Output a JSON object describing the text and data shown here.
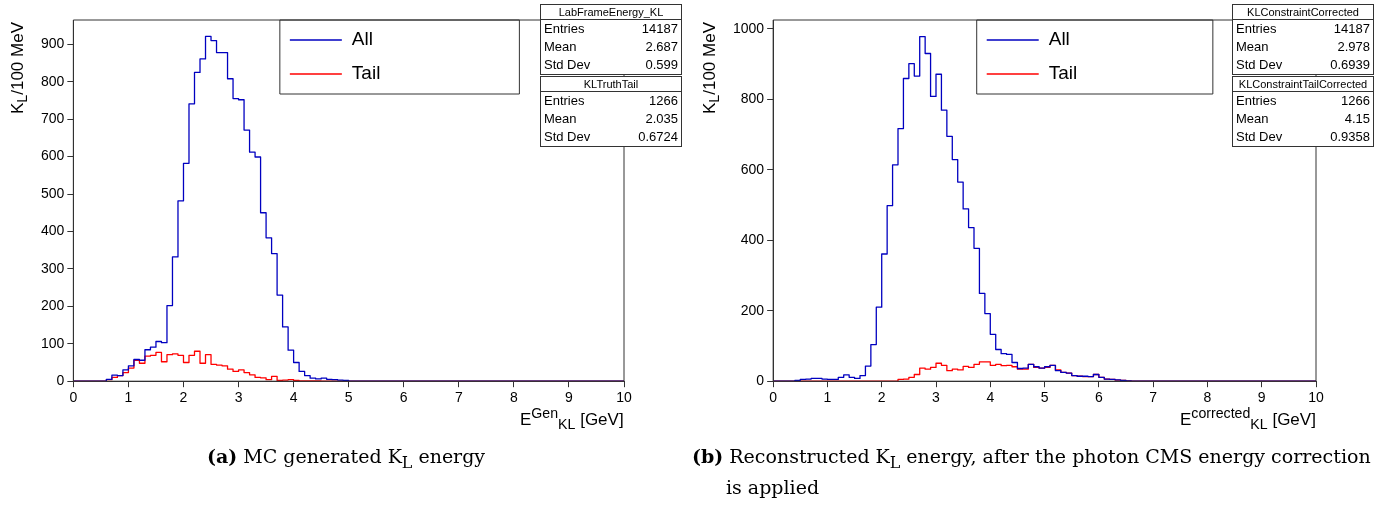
{
  "chart_data": [
    {
      "type": "histogram",
      "xlabel": "E$^{Gen}$$_{KL}$ [GeV]",
      "ylabel": "K$_{L}$/100 MeV",
      "bins": [
        0,
        0.1,
        0.2,
        0.3,
        0.4,
        0.5,
        0.6,
        0.7,
        0.8,
        0.9,
        1,
        1.1,
        1.2,
        1.3,
        1.4,
        1.5,
        1.6,
        1.7,
        1.8,
        1.9,
        2,
        2.1,
        2.2,
        2.3,
        2.4,
        2.5,
        2.6,
        2.7,
        2.8,
        2.9,
        3,
        3.1,
        3.2,
        3.3,
        3.4,
        3.5,
        3.6,
        3.7,
        3.8,
        3.9,
        4,
        4.1,
        4.2,
        4.3,
        4.4,
        4.5,
        4.6,
        4.7,
        4.8,
        4.9,
        5,
        5.1,
        5.2,
        5.3,
        5.4,
        5.5,
        5.6,
        5.7,
        5.8,
        5.9,
        6,
        6.1,
        6.2,
        6.3,
        6.4,
        6.5,
        6.6,
        6.7,
        6.8,
        6.9,
        7,
        7.1,
        7.2,
        7.3,
        7.4,
        7.5,
        7.6,
        7.7,
        7.8,
        7.9,
        8,
        8.1,
        8.2,
        8.3,
        8.4,
        8.5,
        8.6,
        8.7,
        8.8,
        8.9,
        9,
        9.1,
        9.2,
        9.3,
        9.4,
        9.5,
        9.6,
        9.7,
        9.8,
        9.9,
        10
      ],
      "series": [
        {
          "name": "All",
          "color": "#0000c0",
          "values": [
            0,
            0,
            0,
            0,
            0,
            0,
            5,
            16,
            15,
            30,
            41,
            58,
            56,
            84,
            91,
            106,
            103,
            202,
            332,
            482,
            582,
            741,
            825,
            861,
            921,
            910,
            878,
            878,
            808,
            755,
            752,
            671,
            612,
            599,
            450,
            383,
            341,
            230,
            145,
            83,
            50,
            26,
            15,
            8,
            6,
            8,
            5,
            4,
            3,
            2,
            0,
            0,
            0,
            0,
            0,
            0,
            0,
            0,
            0,
            0,
            0,
            0,
            0,
            0,
            0,
            0,
            0,
            0,
            0,
            0,
            0,
            0,
            0,
            0,
            0,
            0,
            0,
            0,
            0,
            0,
            0,
            0,
            0,
            0,
            0,
            0,
            0,
            0,
            0,
            0,
            0,
            0,
            0,
            0,
            0,
            0,
            0,
            0,
            0,
            0
          ]
        },
        {
          "name": "Tail",
          "color": "#ff0000",
          "values": [
            0,
            0,
            0,
            0,
            0,
            0,
            4,
            10,
            15,
            23,
            35,
            56,
            48,
            67,
            69,
            77,
            52,
            71,
            73,
            69,
            50,
            69,
            80,
            48,
            71,
            45,
            43,
            41,
            32,
            26,
            30,
            23,
            17,
            10,
            9,
            4,
            13,
            2,
            3,
            4,
            2,
            1,
            1,
            1,
            1,
            0,
            0,
            0,
            0,
            0,
            0,
            0,
            0,
            0,
            0,
            0,
            0,
            0,
            0,
            0,
            0,
            0,
            0,
            0,
            0,
            0,
            0,
            0,
            0,
            0,
            0,
            0,
            0,
            0,
            0,
            0,
            0,
            0,
            0,
            0,
            0,
            0,
            0,
            0,
            0,
            0,
            0,
            0,
            0,
            0,
            0,
            0,
            0,
            0,
            0,
            0,
            0,
            0,
            0,
            0
          ]
        }
      ],
      "xlim": [
        0,
        10
      ],
      "xticks": [
        0,
        1,
        2,
        3,
        4,
        5,
        6,
        7,
        8,
        9,
        10
      ],
      "ylim": [
        0,
        965
      ],
      "yticks": [
        0,
        100,
        200,
        300,
        400,
        500,
        600,
        700,
        800,
        900
      ],
      "legend": "top",
      "marker": "none",
      "annotations": [
        "LabFrameEnergy_KL",
        "Entries",
        "14187",
        "Mean",
        "2.687",
        "Std Dev",
        "0.599",
        "KLTruthTail",
        "Entries",
        "1266",
        "Mean",
        "2.035",
        "Std Dev",
        "0.6724",
        "(a) MC generated K$_{L}$ energy"
      ]
    },
    {
      "type": "histogram",
      "xlabel": "E$^{corrected}$$_{KL}$ [GeV]",
      "ylabel": "K$_{L}$/100 MeV",
      "bins": [
        0,
        0.1,
        0.2,
        0.3,
        0.4,
        0.5,
        0.6,
        0.7,
        0.8,
        0.9,
        1,
        1.1,
        1.2,
        1.3,
        1.4,
        1.5,
        1.6,
        1.7,
        1.8,
        1.9,
        2,
        2.1,
        2.2,
        2.3,
        2.4,
        2.5,
        2.6,
        2.7,
        2.8,
        2.9,
        3,
        3.1,
        3.2,
        3.3,
        3.4,
        3.5,
        3.6,
        3.7,
        3.8,
        3.9,
        4,
        4.1,
        4.2,
        4.3,
        4.4,
        4.5,
        4.6,
        4.7,
        4.8,
        4.9,
        5,
        5.1,
        5.2,
        5.3,
        5.4,
        5.5,
        5.6,
        5.7,
        5.8,
        5.9,
        6,
        6.1,
        6.2,
        6.3,
        6.4,
        6.5,
        6.6,
        6.7,
        6.8,
        6.9,
        7,
        7.1,
        7.2,
        7.3,
        7.4,
        7.5,
        7.6,
        7.7,
        7.8,
        7.9,
        8,
        8.1,
        8.2,
        8.3,
        8.4,
        8.5,
        8.6,
        8.7,
        8.8,
        8.9,
        9,
        9.1,
        9.2,
        9.3,
        9.4,
        9.5,
        9.6,
        9.7,
        9.8,
        9.9,
        10
      ],
      "series": [
        {
          "name": "All",
          "color": "#0000c0",
          "values": [
            0,
            0,
            0,
            0,
            2,
            5,
            6,
            8,
            8,
            6,
            5,
            5,
            11,
            18,
            11,
            8,
            16,
            43,
            104,
            210,
            361,
            498,
            614,
            717,
            859,
            901,
            866,
            978,
            930,
            808,
            871,
            769,
            695,
            629,
            565,
            489,
            436,
            377,
            249,
            192,
            133,
            90,
            78,
            76,
            53,
            36,
            37,
            48,
            41,
            37,
            41,
            45,
            30,
            25,
            23,
            16,
            14,
            14,
            13,
            19,
            11,
            6,
            5,
            4,
            2,
            1,
            0,
            0,
            0,
            0,
            0,
            0,
            0,
            0,
            0,
            0,
            0,
            0,
            0,
            0,
            0,
            0,
            0,
            0,
            0,
            0,
            0,
            0,
            0,
            0,
            0,
            0,
            0,
            0,
            0,
            0,
            0,
            0,
            0,
            0
          ]
        },
        {
          "name": "Tail",
          "color": "#ff0000",
          "values": [
            0,
            0,
            0,
            0,
            0,
            0,
            0,
            0,
            0,
            0,
            0,
            0,
            0,
            0,
            0,
            0,
            0,
            0,
            0,
            0,
            0,
            0,
            0,
            5,
            6,
            11,
            19,
            37,
            34,
            39,
            51,
            45,
            30,
            34,
            32,
            42,
            39,
            48,
            55,
            55,
            45,
            48,
            44,
            45,
            41,
            34,
            34,
            48,
            39,
            37,
            39,
            45,
            32,
            25,
            23,
            16,
            14,
            13,
            13,
            19,
            11,
            6,
            5,
            3,
            2,
            1,
            0,
            0,
            0,
            0,
            0,
            0,
            0,
            0,
            0,
            0,
            0,
            0,
            0,
            0,
            0,
            0,
            0,
            0,
            0,
            0,
            0,
            0,
            0,
            0,
            0,
            0,
            0,
            0,
            0,
            0,
            0,
            0,
            0,
            0
          ]
        }
      ],
      "xlim": [
        0,
        10
      ],
      "xticks": [
        0,
        1,
        2,
        3,
        4,
        5,
        6,
        7,
        8,
        9,
        10
      ],
      "ylim": [
        0,
        1025
      ],
      "yticks": [
        0,
        200,
        400,
        600,
        800,
        1000
      ],
      "legend": "top",
      "marker": "none",
      "annotations": [
        "KLConstraintCorrected",
        "Entries",
        "14187",
        "Mean",
        "2.978",
        "Std Dev",
        "0.6939",
        "KLConstraintTailCorrected",
        "Entries",
        "1266",
        "Mean",
        "4.15",
        "Std Dev",
        "0.9358",
        "(b) Reconstructed K$_{L}$ energy, after the photon CMS energy correction is applied"
      ]
    }
  ]
}
